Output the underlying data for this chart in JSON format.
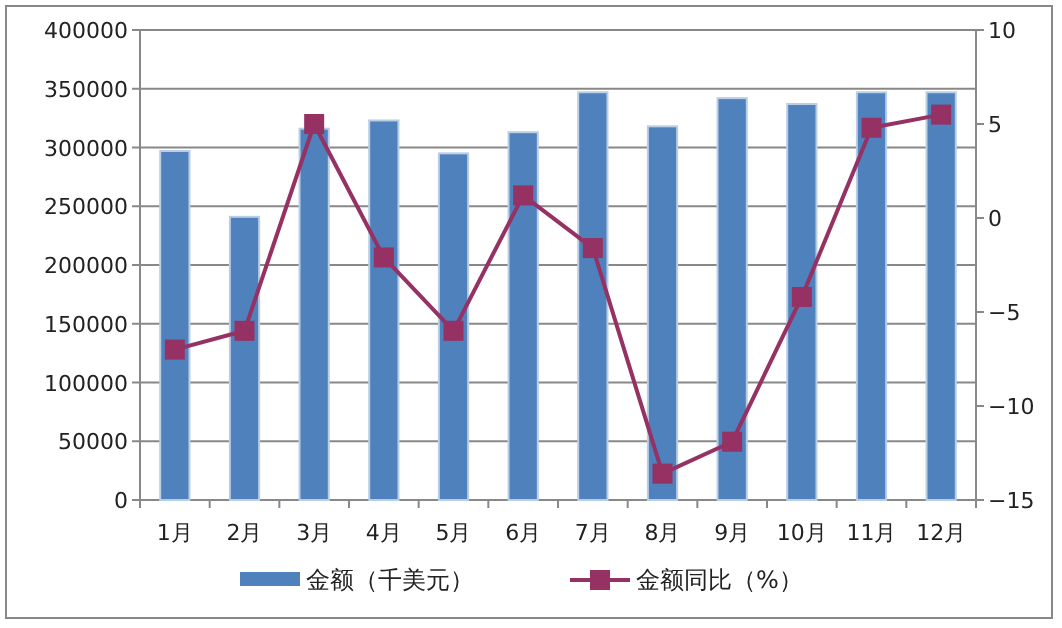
{
  "chart_data": {
    "type": "bar",
    "categories": [
      "1月",
      "2月",
      "3月",
      "4月",
      "5月",
      "6月",
      "7月",
      "8月",
      "9月",
      "10月",
      "11月",
      "12月"
    ],
    "series": [
      {
        "name": "金额（千美元）",
        "color": "#4f81bd",
        "values": [
          297000,
          241000,
          316000,
          323000,
          295000,
          313000,
          347000,
          318000,
          342000,
          337000,
          347000,
          347000
        ]
      },
      {
        "name": "金额同比（%）",
        "type": "line",
        "axis": "y2",
        "color": "#953163",
        "marker": "square",
        "values": [
          -7.0,
          -6.0,
          5.0,
          -2.1,
          -6.0,
          1.2,
          -1.6,
          -13.6,
          -11.9,
          -4.2,
          4.8,
          5.5
        ]
      }
    ],
    "ylim": [
      0,
      400000
    ],
    "yticks": [
      0,
      50000,
      100000,
      150000,
      200000,
      250000,
      300000,
      350000,
      400000
    ],
    "y2lim": [
      -15,
      10
    ],
    "y2ticks": [
      -15,
      -10,
      -5,
      0,
      5,
      10
    ],
    "grid": "y",
    "legend": "bottom"
  }
}
